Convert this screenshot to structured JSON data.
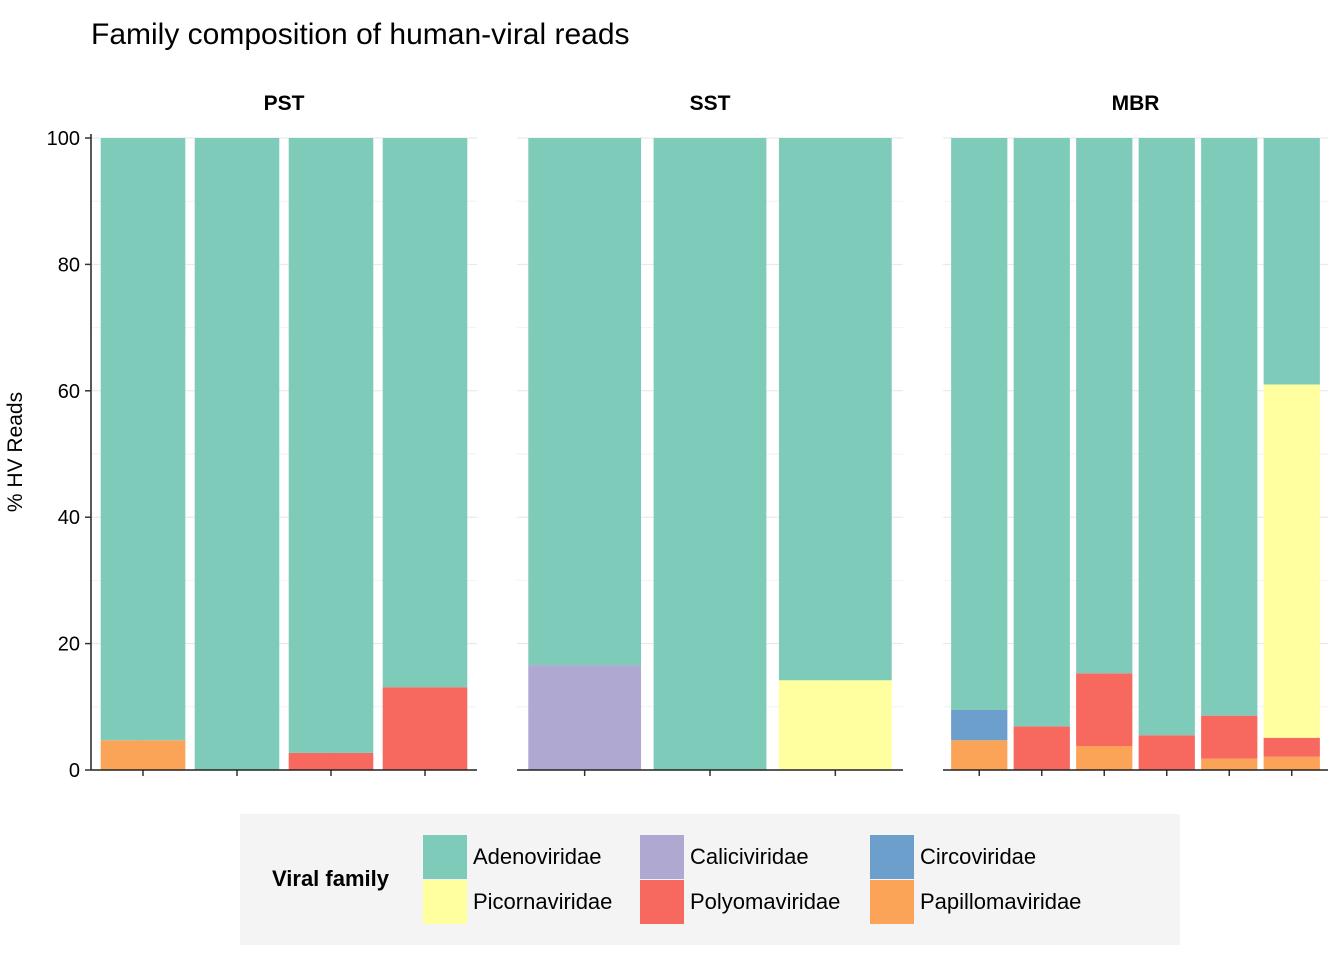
{
  "chart_data": {
    "type": "bar",
    "stacked": true,
    "title": "Family composition of human-viral reads",
    "ylabel": "% HV Reads",
    "xlabel": "",
    "ylim": [
      0,
      100
    ],
    "yticks": [
      0,
      20,
      40,
      60,
      80,
      100
    ],
    "grid": true,
    "legend_placement": "bottom",
    "legend_title": "Viral family",
    "families": [
      {
        "name": "Adenoviridae",
        "color": "#7fcbba"
      },
      {
        "name": "Caliciviridae",
        "color": "#afa8d0"
      },
      {
        "name": "Circoviridae",
        "color": "#6c9fcb"
      },
      {
        "name": "Picornaviridae",
        "color": "#ffffa0"
      },
      {
        "name": "Polyomaviridae",
        "color": "#f7685e"
      },
      {
        "name": "Papillomaviridae",
        "color": "#fba357"
      }
    ],
    "facets": [
      {
        "label": "PST",
        "bars": [
          {
            "Papillomaviridae": 4.7,
            "Adenoviridae": 95.3
          },
          {
            "Adenoviridae": 100
          },
          {
            "Polyomaviridae": 2.7,
            "Adenoviridae": 97.3
          },
          {
            "Polyomaviridae": 13.1,
            "Adenoviridae": 86.9
          }
        ]
      },
      {
        "label": "SST",
        "bars": [
          {
            "Caliciviridae": 16.6,
            "Adenoviridae": 83.4
          },
          {
            "Adenoviridae": 100
          },
          {
            "Picornaviridae": 14.2,
            "Adenoviridae": 85.8
          }
        ]
      },
      {
        "label": "MBR",
        "bars": [
          {
            "Papillomaviridae": 4.7,
            "Circoviridae": 4.8,
            "Adenoviridae": 90.5
          },
          {
            "Polyomaviridae": 6.9,
            "Adenoviridae": 93.1
          },
          {
            "Papillomaviridae": 3.8,
            "Polyomaviridae": 11.5,
            "Adenoviridae": 84.7
          },
          {
            "Polyomaviridae": 5.5,
            "Adenoviridae": 94.5
          },
          {
            "Papillomaviridae": 1.8,
            "Polyomaviridae": 6.8,
            "Adenoviridae": 91.4
          },
          {
            "Papillomaviridae": 2.1,
            "Polyomaviridae": 3.0,
            "Picornaviridae": 55.9,
            "Adenoviridae": 39.0
          }
        ]
      }
    ]
  }
}
